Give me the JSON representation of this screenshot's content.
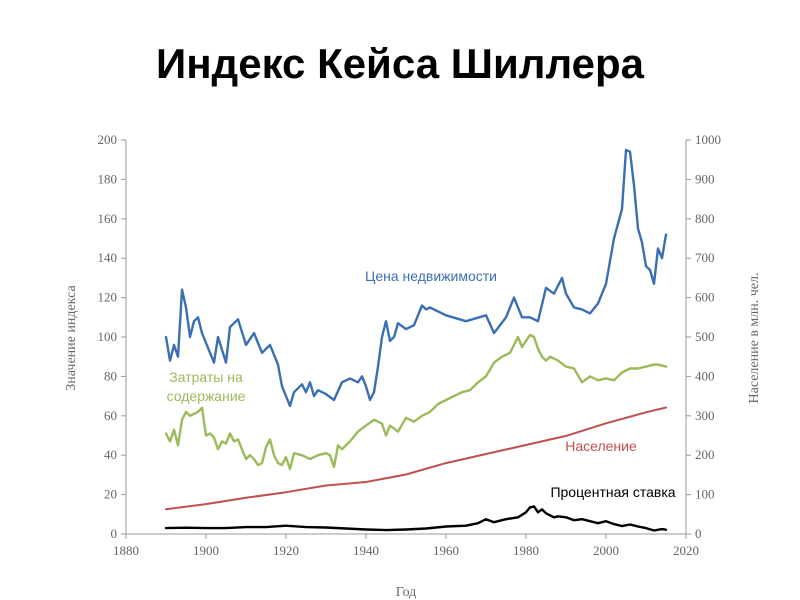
{
  "slide": {
    "title": "Индекс Кейса Шиллера"
  },
  "colors": {
    "price": "#3b6fb4",
    "costs": "#9bbb59",
    "population": "#c0504d",
    "rate": "#000000",
    "axis": "#999999",
    "text": "#666666"
  },
  "chart_data": {
    "type": "line",
    "title": "Индекс Кейса Шиллера",
    "xlabel": "Год",
    "ylabel": "Значение индекса",
    "y2label": "Население в млн. чел.",
    "xlim": [
      1880,
      2020
    ],
    "ylim": [
      0,
      200
    ],
    "y2lim": [
      0,
      1000
    ],
    "xticks": [
      1880,
      1900,
      1920,
      1940,
      1960,
      1980,
      2000,
      2020
    ],
    "yticks": [
      0,
      20,
      40,
      60,
      80,
      100,
      120,
      140,
      160,
      180,
      200
    ],
    "y2ticks": [
      0,
      100,
      200,
      300,
      400,
      500,
      600,
      700,
      800,
      900,
      1000
    ],
    "grid": false,
    "series": [
      {
        "name": "Цена недвижимости",
        "axis": "left",
        "color": "#3b6fb4",
        "x": [
          1890,
          1891,
          1892,
          1893,
          1894,
          1895,
          1896,
          1897,
          1898,
          1899,
          1900,
          1902,
          1903,
          1905,
          1906,
          1908,
          1910,
          1912,
          1914,
          1916,
          1918,
          1919,
          1920,
          1921,
          1922,
          1924,
          1925,
          1926,
          1927,
          1928,
          1930,
          1932,
          1934,
          1936,
          1938,
          1939,
          1940,
          1941,
          1942,
          1943,
          1944,
          1945,
          1946,
          1947,
          1948,
          1950,
          1952,
          1954,
          1955,
          1956,
          1960,
          1965,
          1970,
          1972,
          1975,
          1977,
          1979,
          1981,
          1983,
          1985,
          1987,
          1989,
          1990,
          1992,
          1994,
          1996,
          1998,
          2000,
          2002,
          2004,
          2005,
          2006,
          2007,
          2008,
          2009,
          2010,
          2011,
          2012,
          2013,
          2014,
          2015
        ],
        "values": [
          100,
          88,
          96,
          90,
          124,
          115,
          100,
          108,
          110,
          102,
          97,
          87,
          100,
          87,
          105,
          109,
          96,
          102,
          92,
          96,
          86,
          75,
          70,
          65,
          72,
          76,
          72,
          77,
          70,
          73,
          71,
          68,
          77,
          79,
          77,
          80,
          75,
          68,
          72,
          85,
          100,
          108,
          98,
          100,
          107,
          104,
          106,
          116,
          114,
          115,
          111,
          108,
          111,
          102,
          110,
          120,
          110,
          110,
          108,
          125,
          122,
          130,
          122,
          115,
          114,
          112,
          117,
          127,
          150,
          165,
          195,
          194,
          177,
          155,
          148,
          136,
          134,
          127,
          145,
          140,
          152
        ]
      },
      {
        "name": "Затраты на содержание",
        "axis": "left",
        "color": "#9bbb59",
        "x": [
          1890,
          1891,
          1892,
          1893,
          1894,
          1895,
          1896,
          1898,
          1899,
          1900,
          1901,
          1902,
          1903,
          1904,
          1905,
          1906,
          1907,
          1908,
          1909,
          1910,
          1911,
          1912,
          1913,
          1914,
          1915,
          1916,
          1917,
          1918,
          1919,
          1920,
          1921,
          1922,
          1924,
          1926,
          1928,
          1930,
          1931,
          1932,
          1933,
          1934,
          1936,
          1938,
          1940,
          1942,
          1944,
          1945,
          1946,
          1948,
          1950,
          1952,
          1954,
          1956,
          1958,
          1960,
          1962,
          1964,
          1966,
          1968,
          1970,
          1972,
          1974,
          1976,
          1978,
          1979,
          1980,
          1981,
          1982,
          1983,
          1984,
          1985,
          1986,
          1988,
          1990,
          1992,
          1994,
          1996,
          1998,
          2000,
          2002,
          2004,
          2006,
          2008,
          2010,
          2012,
          2013,
          2015
        ],
        "values": [
          51,
          47,
          53,
          45,
          58,
          62,
          60,
          62,
          64,
          50,
          51,
          49,
          43,
          47,
          46,
          51,
          47,
          48,
          43,
          38,
          40,
          38,
          35,
          36,
          44,
          48,
          40,
          36,
          35,
          39,
          33,
          41,
          40,
          38,
          40,
          41,
          40,
          34,
          45,
          43,
          47,
          52,
          55,
          58,
          56,
          50,
          55,
          52,
          59,
          57,
          60,
          62,
          66,
          68,
          70,
          72,
          73,
          77,
          80,
          87,
          90,
          92,
          100,
          95,
          98,
          101,
          100,
          94,
          90,
          88,
          90,
          88,
          85,
          84,
          77,
          80,
          78,
          79,
          78,
          82,
          84,
          84,
          85,
          86,
          86,
          85
        ]
      },
      {
        "name": "Население",
        "axis": "right",
        "color": "#c0504d",
        "x": [
          1890,
          1900,
          1910,
          1920,
          1930,
          1940,
          1950,
          1960,
          1970,
          1980,
          1990,
          2000,
          2010,
          2015
        ],
        "values": [
          63,
          76,
          92,
          106,
          123,
          132,
          151,
          180,
          203,
          226,
          249,
          281,
          309,
          321
        ]
      },
      {
        "name": "Процентная ставка",
        "axis": "left",
        "color": "#000000",
        "x": [
          1890,
          1895,
          1900,
          1905,
          1910,
          1915,
          1920,
          1925,
          1930,
          1935,
          1940,
          1945,
          1950,
          1955,
          1960,
          1965,
          1968,
          1970,
          1972,
          1975,
          1978,
          1980,
          1981,
          1982,
          1983,
          1984,
          1985,
          1987,
          1988,
          1990,
          1992,
          1994,
          1996,
          1998,
          2000,
          2002,
          2004,
          2006,
          2008,
          2010,
          2012,
          2014,
          2015
        ],
        "values": [
          3.0,
          3.2,
          3.0,
          3.0,
          3.5,
          3.5,
          4.2,
          3.5,
          3.3,
          2.8,
          2.3,
          2.0,
          2.3,
          2.8,
          3.8,
          4.2,
          5.5,
          7.5,
          6.0,
          7.5,
          8.5,
          11.0,
          13.5,
          14.0,
          11.0,
          12.5,
          10.5,
          8.5,
          9.0,
          8.5,
          7.0,
          7.5,
          6.5,
          5.5,
          6.5,
          5.0,
          4.0,
          4.8,
          3.8,
          3.0,
          1.8,
          2.5,
          2.2
        ]
      }
    ],
    "annotations": [
      {
        "text": "Цена недвижимости",
        "series": "Цена недвижимости"
      },
      {
        "text": "Затраты на",
        "series": "Затраты на содержание"
      },
      {
        "text": "содержание",
        "series": "Затраты на содержание"
      },
      {
        "text": "Население",
        "series": "Население"
      },
      {
        "text": "Процентная ставка",
        "series": "Процентная ставка"
      }
    ]
  }
}
